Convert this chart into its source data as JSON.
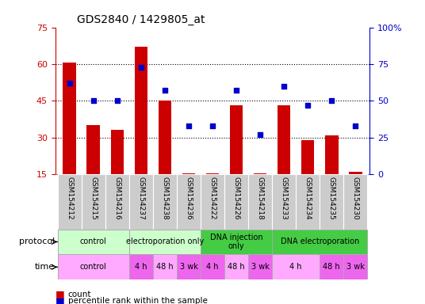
{
  "title": "GDS2840 / 1429805_at",
  "samples": [
    "GSM154212",
    "GSM154215",
    "GSM154216",
    "GSM154237",
    "GSM154238",
    "GSM154236",
    "GSM154222",
    "GSM154226",
    "GSM154218",
    "GSM154233",
    "GSM154234",
    "GSM154235",
    "GSM154230"
  ],
  "counts": [
    60.5,
    35,
    33,
    67,
    45,
    15.2,
    15.2,
    43,
    15.2,
    43,
    29,
    31,
    16
  ],
  "percentile_ranks": [
    62,
    50,
    50,
    73,
    57,
    33,
    33,
    57,
    27,
    60,
    47,
    50,
    33
  ],
  "ylim_left": [
    15,
    75
  ],
  "ylim_right": [
    0,
    100
  ],
  "yticks_left": [
    15,
    30,
    45,
    60,
    75
  ],
  "yticks_right": [
    0,
    25,
    50,
    75,
    100
  ],
  "ytick_labels_right": [
    "0",
    "25",
    "50",
    "75",
    "100%"
  ],
  "bar_color": "#cc0000",
  "dot_color": "#0000cc",
  "bar_base": 15,
  "protocol_groups": [
    {
      "label": "control",
      "start": 0,
      "end": 3,
      "color": "#ccffcc"
    },
    {
      "label": "electroporation only",
      "start": 3,
      "end": 6,
      "color": "#ccffcc"
    },
    {
      "label": "DNA injection\nonly",
      "start": 6,
      "end": 9,
      "color": "#44cc44"
    },
    {
      "label": "DNA electroporation",
      "start": 9,
      "end": 13,
      "color": "#44cc44"
    }
  ],
  "time_groups": [
    {
      "label": "control",
      "start": 0,
      "end": 3,
      "color": "#ffaaff"
    },
    {
      "label": "4 h",
      "start": 3,
      "end": 4,
      "color": "#ee66ee"
    },
    {
      "label": "48 h",
      "start": 4,
      "end": 5,
      "color": "#ffaaff"
    },
    {
      "label": "3 wk",
      "start": 5,
      "end": 6,
      "color": "#ee66ee"
    },
    {
      "label": "4 h",
      "start": 6,
      "end": 7,
      "color": "#ee66ee"
    },
    {
      "label": "48 h",
      "start": 7,
      "end": 8,
      "color": "#ffaaff"
    },
    {
      "label": "3 wk",
      "start": 8,
      "end": 9,
      "color": "#ee66ee"
    },
    {
      "label": "4 h",
      "start": 9,
      "end": 11,
      "color": "#ffaaff"
    },
    {
      "label": "48 h",
      "start": 11,
      "end": 12,
      "color": "#ee66ee"
    },
    {
      "label": "3 wk",
      "start": 12,
      "end": 13,
      "color": "#ee66ee"
    }
  ],
  "tick_color_left": "#cc0000",
  "tick_color_right": "#0000cc",
  "grid_color": "#000000",
  "label_bg_color": "#cccccc"
}
